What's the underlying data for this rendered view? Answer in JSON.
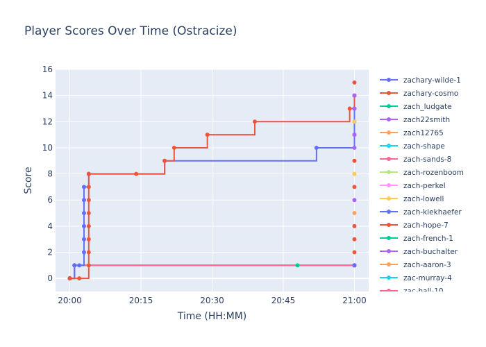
{
  "chart_data": {
    "type": "line",
    "line_shape": "step",
    "title": "Player Scores Over Time (Ostracize)",
    "xlabel": "Time (HH:MM)",
    "ylabel": "Score",
    "xlim": [
      "20:00",
      "21:00"
    ],
    "ylim": [
      -1,
      16
    ],
    "x_ticks": [
      "20:00",
      "20:15",
      "20:30",
      "20:45",
      "21:00"
    ],
    "y_ticks": [
      0,
      2,
      4,
      6,
      8,
      10,
      12,
      14,
      16
    ],
    "grid": true,
    "legend_position": "right",
    "plot_background": "#e5ecf6",
    "series": [
      {
        "name": "zachary-wilde-1",
        "color": "#636efa",
        "x": [
          "20:00",
          "20:01",
          "20:02",
          "20:03",
          "20:03",
          "20:03",
          "20:03",
          "20:03",
          "20:03",
          "20:04",
          "20:04",
          "20:20",
          "20:52",
          "21:00",
          "21:00",
          "21:00",
          "21:00"
        ],
        "y": [
          0,
          1,
          1,
          2,
          3,
          4,
          5,
          6,
          7,
          8,
          8,
          9,
          10,
          11,
          12,
          13,
          14
        ]
      },
      {
        "name": "zachary-cosmo",
        "color": "#ef553b",
        "x": [
          "20:00",
          "20:02",
          "20:04",
          "20:04",
          "20:04",
          "20:04",
          "20:04",
          "20:04",
          "20:04",
          "20:04",
          "20:14",
          "20:20",
          "20:22",
          "20:29",
          "20:39",
          "20:59",
          "21:00"
        ],
        "y": [
          0,
          0,
          1,
          2,
          3,
          4,
          5,
          6,
          7,
          8,
          8,
          9,
          10,
          11,
          12,
          13,
          14
        ]
      },
      {
        "name": "zach_ludgate",
        "color": "#00cc96",
        "x": [
          "20:00",
          "20:01",
          "20:48",
          "21:00"
        ],
        "y": [
          0,
          1,
          1,
          1
        ]
      },
      {
        "name": "zach22smith",
        "color": "#ab63fa",
        "x": [
          "20:00",
          "20:01",
          "21:00"
        ],
        "y": [
          0,
          1,
          1
        ]
      },
      {
        "name": "zach12765",
        "color": "#ffa15a",
        "x": [
          "20:00",
          "20:01",
          "21:00"
        ],
        "y": [
          0,
          1,
          1
        ]
      },
      {
        "name": "zach-shape",
        "color": "#19d3f3",
        "x": [
          "20:00",
          "20:01",
          "21:00"
        ],
        "y": [
          0,
          1,
          1
        ]
      },
      {
        "name": "zach-sands-8",
        "color": "#ff6692",
        "x": [
          "20:00",
          "20:01",
          "21:00"
        ],
        "y": [
          0,
          1,
          1
        ]
      },
      {
        "name": "zach-rozenboom",
        "color": "#b6e880",
        "x": [
          "20:00",
          "20:01",
          "21:00"
        ],
        "y": [
          0,
          1,
          1
        ]
      },
      {
        "name": "zach-perkel",
        "color": "#ff97ff",
        "x": [
          "20:00",
          "20:01",
          "21:00"
        ],
        "y": [
          0,
          1,
          1
        ]
      },
      {
        "name": "zach-lowell",
        "color": "#fecb52",
        "x": [
          "20:00",
          "20:01",
          "21:00"
        ],
        "y": [
          0,
          1,
          1
        ]
      },
      {
        "name": "zach-kiekhaefer",
        "color": "#636efa",
        "x": [
          "20:00",
          "20:01",
          "21:00"
        ],
        "y": [
          0,
          1,
          1
        ]
      },
      {
        "name": "zach-hope-7",
        "color": "#ef553b",
        "x": [
          "20:00",
          "20:01",
          "21:00"
        ],
        "y": [
          0,
          1,
          1
        ]
      },
      {
        "name": "zach-french-1",
        "color": "#00cc96",
        "x": [
          "20:00",
          "20:01",
          "21:00"
        ],
        "y": [
          0,
          1,
          1
        ]
      },
      {
        "name": "zach-buchalter",
        "color": "#ab63fa",
        "x": [
          "20:00",
          "20:01",
          "21:00"
        ],
        "y": [
          0,
          1,
          1
        ]
      },
      {
        "name": "zach-aaron-3",
        "color": "#ffa15a",
        "x": [
          "20:00",
          "20:01",
          "21:00"
        ],
        "y": [
          0,
          1,
          1
        ]
      },
      {
        "name": "zac-murray-4",
        "color": "#19d3f3",
        "x": [
          "20:00",
          "20:01",
          "21:00"
        ],
        "y": [
          0,
          1,
          1
        ]
      },
      {
        "name": "zac-hall-10",
        "color": "#ff6692",
        "x": [
          "20:00",
          "20:01",
          "21:00"
        ],
        "y": [
          0,
          1,
          1
        ]
      }
    ],
    "end_column_points": [
      {
        "y": 1,
        "color": "#636efa"
      },
      {
        "y": 2,
        "color": "#ef553b"
      },
      {
        "y": 3,
        "color": "#ef553b"
      },
      {
        "y": 4,
        "color": "#ef553b"
      },
      {
        "y": 5,
        "color": "#ffa15a"
      },
      {
        "y": 6,
        "color": "#ab63fa"
      },
      {
        "y": 7,
        "color": "#ef553b"
      },
      {
        "y": 8,
        "color": "#fecb52"
      },
      {
        "y": 9,
        "color": "#ef553b"
      },
      {
        "y": 10,
        "color": "#ab63fa"
      },
      {
        "y": 11,
        "color": "#ab63fa"
      },
      {
        "y": 12,
        "color": "#fecb52"
      },
      {
        "y": 13,
        "color": "#ab63fa"
      },
      {
        "y": 14,
        "color": "#ab63fa"
      },
      {
        "y": 15,
        "color": "#ef553b"
      }
    ]
  }
}
